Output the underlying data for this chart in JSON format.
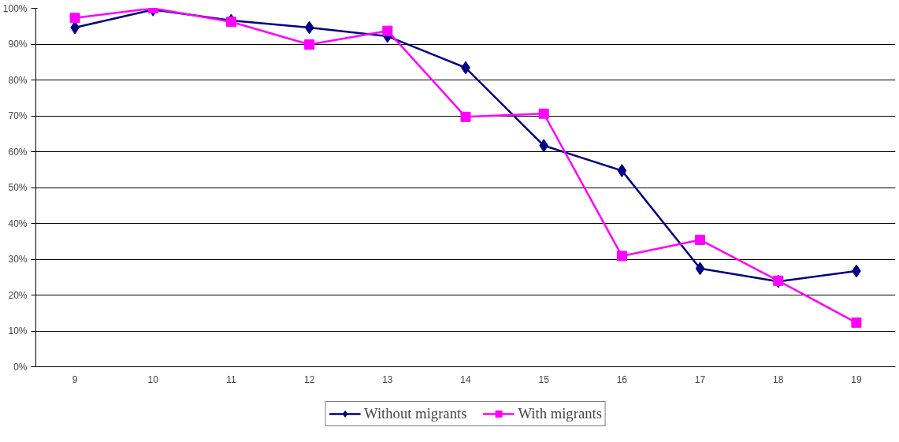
{
  "chart_data": {
    "type": "line",
    "categories": [
      "9",
      "10",
      "11",
      "12",
      "13",
      "14",
      "15",
      "16",
      "17",
      "18",
      "19"
    ],
    "series": [
      {
        "name": "Without migrants",
        "color": "#000080",
        "marker": "diamond",
        "values": [
          94.6,
          99.6,
          96.6,
          94.6,
          92.2,
          83.4,
          61.7,
          54.7,
          27.4,
          23.8,
          26.7
        ]
      },
      {
        "name": "With migrants",
        "color": "#ff00ff",
        "marker": "square",
        "values": [
          97.3,
          100,
          96.2,
          89.9,
          93.7,
          69.7,
          70.6,
          30.9,
          35.4,
          24,
          12.3
        ]
      }
    ],
    "ylim": [
      0,
      100
    ],
    "yticks": [
      {
        "value": 0,
        "label": "0%"
      },
      {
        "value": 10,
        "label": "10%"
      },
      {
        "value": 20,
        "label": "20%"
      },
      {
        "value": 30,
        "label": "30%"
      },
      {
        "value": 40,
        "label": "40%"
      },
      {
        "value": 50,
        "label": "50%"
      },
      {
        "value": 60,
        "label": "60%"
      },
      {
        "value": 70,
        "label": "70%"
      },
      {
        "value": 80,
        "label": "80%"
      },
      {
        "value": 90,
        "label": "90%"
      },
      {
        "value": 100,
        "label": "100%"
      }
    ],
    "grid": "y",
    "legend": "bottom",
    "line_style": "solid"
  }
}
